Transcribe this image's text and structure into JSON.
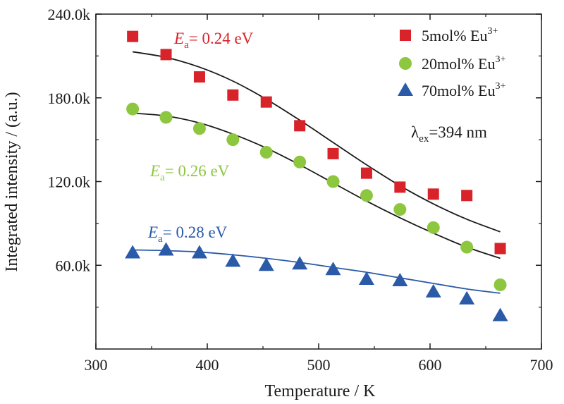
{
  "chart_data": {
    "type": "scatter",
    "xlabel": "Temperature / K",
    "ylabel": "Integrated intensity / (a.u.)",
    "xlim": [
      300,
      700
    ],
    "ylim": [
      0,
      240000
    ],
    "x_ticks": [
      300,
      400,
      500,
      600,
      700
    ],
    "x_tick_labels": [
      "300",
      "400",
      "500",
      "600",
      "700"
    ],
    "y_ticks": [
      60000,
      120000,
      180000,
      240000
    ],
    "y_tick_labels": [
      "60.0k",
      "120.0k",
      "180.0k",
      "240.0k"
    ],
    "grid": false,
    "legend_position": "top-right",
    "excitation_label": "λex=394 nm",
    "series": [
      {
        "name": "5mol% Eu3+",
        "legend_label": {
          "main": "5mol%  Eu",
          "sup": "3+"
        },
        "marker": "square",
        "color": "#d9232a",
        "x": [
          333,
          363,
          393,
          423,
          453,
          483,
          513,
          543,
          573,
          603,
          633,
          663
        ],
        "y": [
          224000,
          211000,
          195000,
          182000,
          177000,
          160000,
          140000,
          126000,
          116000,
          111000,
          110000,
          72000
        ],
        "fit_label": {
          "italic": "E",
          "sub": "a",
          "rest": "= 0.24 eV"
        },
        "fit": {
          "x": [
            333,
            363,
            393,
            423,
            453,
            483,
            513,
            543,
            573,
            603,
            633,
            663
          ],
          "y": [
            213000,
            209000,
            202000,
            192000,
            179000,
            164000,
            148000,
            132000,
            117000,
            104000,
            93000,
            84000
          ]
        }
      },
      {
        "name": "20mol% Eu3+",
        "legend_label": {
          "main": "20mol%  Eu",
          "sup": "3+"
        },
        "marker": "circle",
        "color": "#8dc63f",
        "x": [
          333,
          363,
          393,
          423,
          453,
          483,
          513,
          543,
          573,
          603,
          633,
          663
        ],
        "y": [
          172000,
          166000,
          158000,
          150000,
          141000,
          134000,
          120000,
          110000,
          100000,
          87000,
          73000,
          46000
        ],
        "fit_label": {
          "italic": "E",
          "sub": "a",
          "rest": "= 0.26 eV"
        },
        "fit": {
          "x": [
            333,
            363,
            393,
            423,
            453,
            483,
            513,
            543,
            573,
            603,
            633,
            663
          ],
          "y": [
            169000,
            167000,
            162000,
            154000,
            144000,
            132000,
            119000,
            106000,
            94000,
            83000,
            73000,
            65000
          ]
        }
      },
      {
        "name": "70mol% Eu3+",
        "legend_label": {
          "main": "70mol%  Eu",
          "sup": "3+"
        },
        "marker": "triangle",
        "color": "#2b5aa8",
        "x": [
          333,
          363,
          393,
          423,
          453,
          483,
          513,
          543,
          573,
          603,
          633,
          663
        ],
        "y": [
          69000,
          71000,
          69000,
          63000,
          60000,
          61000,
          57000,
          50000,
          49000,
          41000,
          36000,
          24000
        ],
        "fit_label": {
          "italic": "E",
          "sub": "a",
          "rest": "= 0.28 eV"
        },
        "fit": {
          "x": [
            333,
            363,
            393,
            423,
            453,
            483,
            513,
            543,
            573,
            603,
            633,
            663
          ],
          "y": [
            71000,
            70500,
            69500,
            67500,
            65000,
            62000,
            58500,
            55000,
            51000,
            47000,
            43000,
            40000
          ]
        }
      }
    ]
  }
}
